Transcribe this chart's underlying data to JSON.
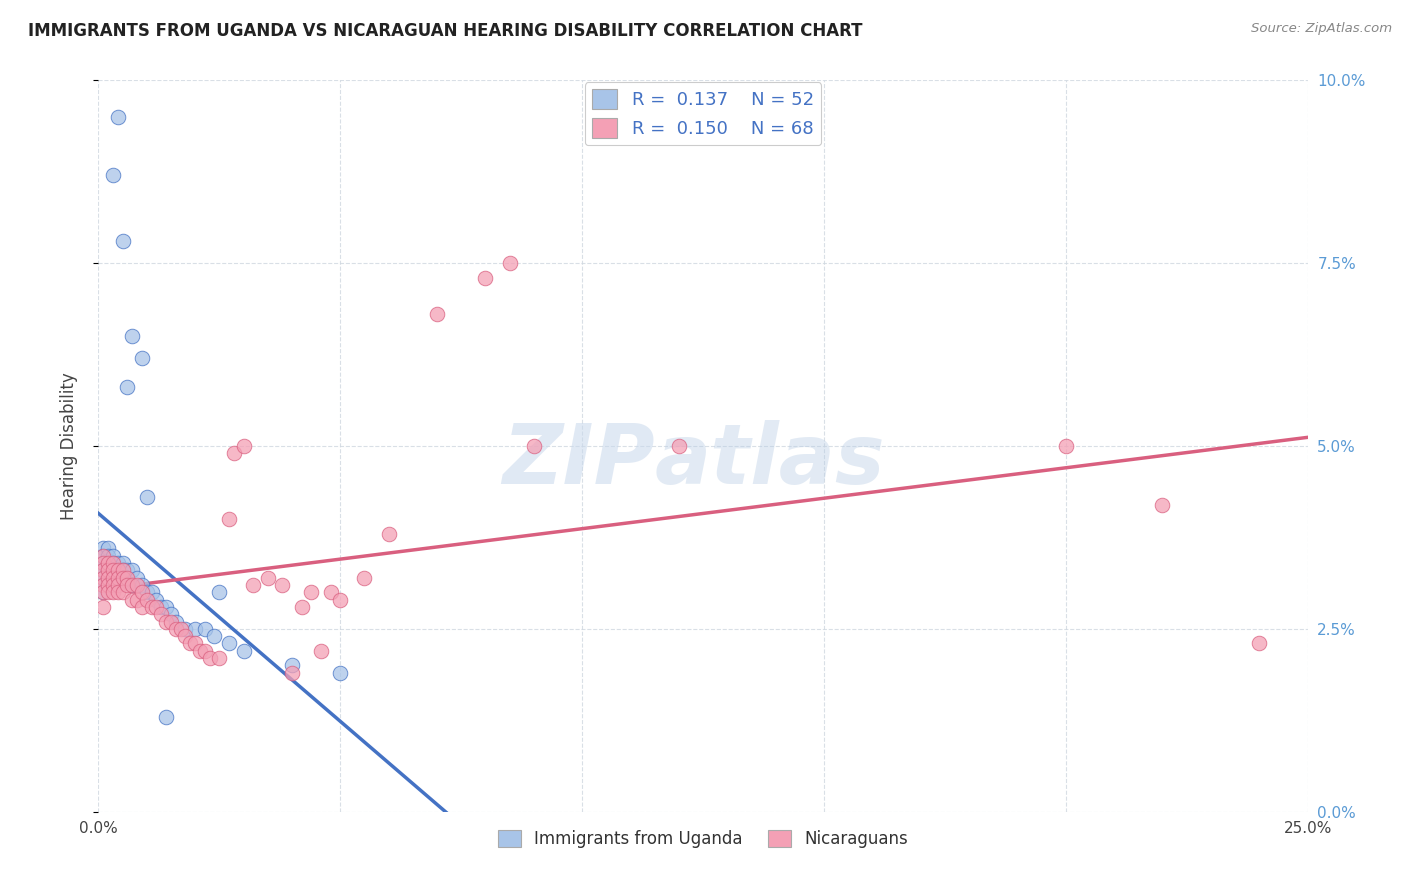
{
  "title": "IMMIGRANTS FROM UGANDA VS NICARAGUAN HEARING DISABILITY CORRELATION CHART",
  "source": "Source: ZipAtlas.com",
  "ylabel": "Hearing Disability",
  "x_min": 0.0,
  "x_max": 0.25,
  "y_min": 0.0,
  "y_max": 0.1,
  "x_ticks": [
    0.0,
    0.05,
    0.1,
    0.15,
    0.2,
    0.25
  ],
  "y_ticks": [
    0.0,
    0.025,
    0.05,
    0.075,
    0.1
  ],
  "color_uganda": "#a8c4e8",
  "color_nicaragua": "#f4a0b5",
  "trend_color_uganda": "#4472c4",
  "trend_color_nicaragua": "#d95f7f",
  "trend_dashed_color": "#9bbcdd",
  "watermark_zip": "ZIP",
  "watermark_atlas": "atlas",
  "background_color": "#ffffff",
  "grid_color": "#d0d8e0",
  "uganda_x": [
    0.004,
    0.003,
    0.005,
    0.007,
    0.009,
    0.001,
    0.001,
    0.001,
    0.001,
    0.001,
    0.001,
    0.001,
    0.002,
    0.002,
    0.002,
    0.002,
    0.002,
    0.002,
    0.003,
    0.003,
    0.003,
    0.003,
    0.004,
    0.004,
    0.004,
    0.005,
    0.005,
    0.006,
    0.006,
    0.007,
    0.007,
    0.008,
    0.009,
    0.01,
    0.011,
    0.012,
    0.013,
    0.014,
    0.015,
    0.016,
    0.018,
    0.02,
    0.022,
    0.024,
    0.025,
    0.027,
    0.03,
    0.04,
    0.05,
    0.01,
    0.014,
    0.006
  ],
  "uganda_y": [
    0.095,
    0.087,
    0.078,
    0.065,
    0.062,
    0.036,
    0.035,
    0.034,
    0.033,
    0.032,
    0.031,
    0.03,
    0.036,
    0.035,
    0.034,
    0.033,
    0.032,
    0.031,
    0.035,
    0.034,
    0.033,
    0.032,
    0.034,
    0.033,
    0.032,
    0.034,
    0.033,
    0.033,
    0.032,
    0.033,
    0.031,
    0.032,
    0.031,
    0.03,
    0.03,
    0.029,
    0.028,
    0.028,
    0.027,
    0.026,
    0.025,
    0.025,
    0.025,
    0.024,
    0.03,
    0.023,
    0.022,
    0.02,
    0.019,
    0.043,
    0.013,
    0.058
  ],
  "nicaragua_x": [
    0.001,
    0.001,
    0.001,
    0.001,
    0.001,
    0.001,
    0.001,
    0.002,
    0.002,
    0.002,
    0.002,
    0.002,
    0.003,
    0.003,
    0.003,
    0.003,
    0.003,
    0.004,
    0.004,
    0.004,
    0.004,
    0.005,
    0.005,
    0.005,
    0.006,
    0.006,
    0.007,
    0.007,
    0.008,
    0.008,
    0.009,
    0.009,
    0.01,
    0.011,
    0.012,
    0.013,
    0.014,
    0.015,
    0.016,
    0.017,
    0.018,
    0.019,
    0.02,
    0.021,
    0.022,
    0.023,
    0.025,
    0.027,
    0.028,
    0.03,
    0.032,
    0.035,
    0.038,
    0.04,
    0.042,
    0.044,
    0.046,
    0.048,
    0.05,
    0.055,
    0.06,
    0.07,
    0.08,
    0.085,
    0.09,
    0.12,
    0.2,
    0.22,
    0.24
  ],
  "nicaragua_y": [
    0.035,
    0.034,
    0.033,
    0.032,
    0.031,
    0.03,
    0.028,
    0.034,
    0.033,
    0.032,
    0.031,
    0.03,
    0.034,
    0.033,
    0.032,
    0.031,
    0.03,
    0.033,
    0.032,
    0.031,
    0.03,
    0.033,
    0.032,
    0.03,
    0.032,
    0.031,
    0.031,
    0.029,
    0.031,
    0.029,
    0.03,
    0.028,
    0.029,
    0.028,
    0.028,
    0.027,
    0.026,
    0.026,
    0.025,
    0.025,
    0.024,
    0.023,
    0.023,
    0.022,
    0.022,
    0.021,
    0.021,
    0.04,
    0.049,
    0.05,
    0.031,
    0.032,
    0.031,
    0.019,
    0.028,
    0.03,
    0.022,
    0.03,
    0.029,
    0.032,
    0.038,
    0.068,
    0.073,
    0.075,
    0.05,
    0.05,
    0.05,
    0.042,
    0.023
  ]
}
